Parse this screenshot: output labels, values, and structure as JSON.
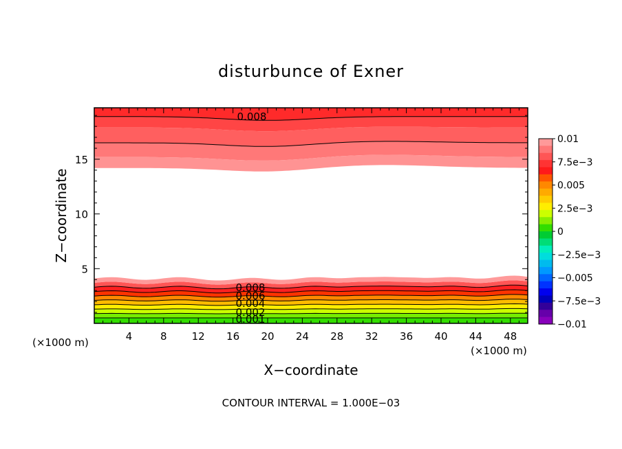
{
  "chart_data": {
    "type": "contour",
    "title": "disturbunce of Exner",
    "xlabel": "X−coordinate",
    "ylabel": "Z−coordinate",
    "x_unit": "(×1000 m)",
    "y_unit": "(×1000 m)",
    "xlim": [
      0,
      50
    ],
    "ylim": [
      0,
      19.7
    ],
    "x_ticks": [
      4,
      8,
      12,
      16,
      20,
      24,
      28,
      32,
      36,
      40,
      44,
      48
    ],
    "y_ticks": [
      5,
      10,
      15
    ],
    "contour_interval_text": "CONTOUR INTERVAL = 1.000E−03",
    "colorbar": {
      "labels": [
        "0.01",
        "7.5e−3",
        "0.005",
        "2.5e−3",
        "0",
        "−2.5e−3",
        "−0.005",
        "−7.5e−3",
        "−0.01"
      ],
      "colors": [
        "#ff9999",
        "#ff7777",
        "#ff5555",
        "#ff3333",
        "#ff1a1a",
        "#ff5500",
        "#ff8800",
        "#ffaa00",
        "#ffcc00",
        "#ffee00",
        "#ccff00",
        "#88ee00",
        "#33dd00",
        "#00cc33",
        "#00dd77",
        "#00eebb",
        "#00dddd",
        "#00bbee",
        "#0099ff",
        "#0066ff",
        "#0033ff",
        "#0000ee",
        "#0000bb",
        "#330099",
        "#6600aa",
        "#8800bb"
      ]
    },
    "contour_labels": {
      "upper": "0.008",
      "lower": [
        "0.008",
        "0.006",
        "0.004",
        "0.002",
        "0.001"
      ]
    },
    "upper_band_levels": [
      {
        "value": 0.009,
        "color": "#ff2a2a"
      },
      {
        "value": 0.008,
        "color": "#ff4545"
      },
      {
        "value": 0.007,
        "color": "#ff5f5f"
      },
      {
        "value": 0.006,
        "color": "#ff7878"
      },
      {
        "value": 0.005,
        "color": "#ff9393"
      }
    ],
    "lower_band_levels": [
      {
        "value": 0.001,
        "color": "#33dd00"
      },
      {
        "value": 0.002,
        "color": "#77ee00"
      },
      {
        "value": 0.003,
        "color": "#ccff00"
      },
      {
        "value": 0.004,
        "color": "#ffee00"
      },
      {
        "value": 0.005,
        "color": "#ffbb00"
      },
      {
        "value": 0.006,
        "color": "#ff8800"
      },
      {
        "value": 0.007,
        "color": "#ff3300"
      },
      {
        "value": 0.008,
        "color": "#ff2020"
      },
      {
        "value": 0.009,
        "color": "#ff5555"
      },
      {
        "value": 0.01,
        "color": "#ff9a9a"
      }
    ]
  }
}
